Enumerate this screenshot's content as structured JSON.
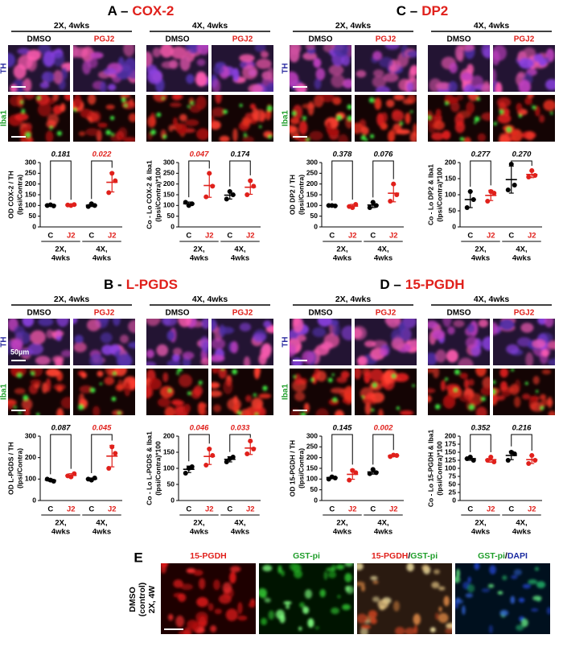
{
  "panels": [
    {
      "letter": "A –",
      "name": "COX-2",
      "headers": [
        "2X, 4wks",
        "4X, 4wks"
      ],
      "conditions": [
        "DMSO",
        "PGJ2"
      ],
      "rows": [
        "TH",
        "Iba1"
      ]
    },
    {
      "letter": "B -",
      "name": "L-PGDS",
      "headers": [
        "2X, 4wks",
        "4X, 4wks"
      ],
      "conditions": [
        "DMSO",
        "PGJ2"
      ],
      "rows": [
        "TH",
        "Iba1"
      ],
      "scalebar": "50µm"
    },
    {
      "letter": "C –",
      "name": "DP2",
      "headers": [
        "2X, 4wks",
        "4X, 4wks"
      ],
      "conditions": [
        "DMSO",
        "PGJ2"
      ],
      "rows": [
        "TH",
        "Iba1"
      ]
    },
    {
      "letter": "D –",
      "name": "15-PGDH",
      "headers": [
        "2X, 4wks",
        "4X, 4wks"
      ],
      "conditions": [
        "DMSO",
        "PGJ2"
      ],
      "rows": [
        "TH",
        "Iba1"
      ]
    }
  ],
  "panel_e": {
    "letter": "E",
    "side_label": [
      "DMSO",
      "(control)",
      "2X, 4W"
    ],
    "channels": [
      {
        "parts": [
          {
            "text": "15-PGDH",
            "color": "#e0201b"
          }
        ]
      },
      {
        "parts": [
          {
            "text": "GST-pi",
            "color": "#1f9e2a"
          }
        ]
      },
      {
        "parts": [
          {
            "text": "15-PGDH",
            "color": "#e0201b"
          },
          {
            "text": "/",
            "color": "#000000"
          },
          {
            "text": "GST-pi",
            "color": "#1f9e2a"
          }
        ]
      },
      {
        "parts": [
          {
            "text": "GST-pi",
            "color": "#1f9e2a"
          },
          {
            "text": "/",
            "color": "#000000"
          },
          {
            "text": "DAPI",
            "color": "#1a2aa0"
          }
        ]
      }
    ]
  },
  "chart_data": [
    {
      "type": "dotplot",
      "ylabel": [
        "OD COX-2 / TH",
        "(Ipsi/Contra)"
      ],
      "ylim": [
        0,
        300
      ],
      "yticks": [
        0,
        50,
        100,
        150,
        200,
        250,
        300
      ],
      "categories": [
        "C",
        "J2",
        "C",
        "J2"
      ],
      "colors": [
        "#000000",
        "#e0201b",
        "#000000",
        "#e0201b"
      ],
      "points": [
        [
          100,
          103,
          98
        ],
        [
          102,
          100,
          104
        ],
        [
          95,
          108,
          100
        ],
        [
          160,
          250,
          215
        ]
      ],
      "means": [
        101,
        102,
        101,
        208
      ],
      "sds": [
        3,
        2,
        6,
        45
      ],
      "groups": [
        [
          "2X,",
          "4wks"
        ],
        [
          "4X,",
          "4wks"
        ]
      ],
      "pvalues": [
        {
          "text": "0.181",
          "color": "#000000"
        },
        {
          "text": "0.022",
          "color": "#e0201b"
        }
      ]
    },
    {
      "type": "dotplot",
      "ylabel": [
        "Co - Lo COX-2 & Iba1",
        "(Ipsi/Contra)*100"
      ],
      "ylim": [
        0,
        300
      ],
      "yticks": [
        0,
        50,
        100,
        150,
        200,
        250,
        300
      ],
      "categories": [
        "C",
        "J2",
        "C",
        "J2"
      ],
      "colors": [
        "#000000",
        "#e0201b",
        "#000000",
        "#e0201b"
      ],
      "points": [
        [
          115,
          100,
          108
        ],
        [
          140,
          250,
          190
        ],
        [
          130,
          165,
          150
        ],
        [
          150,
          215,
          190
        ]
      ],
      "means": [
        108,
        193,
        148,
        185
      ],
      "sds": [
        8,
        55,
        18,
        33
      ],
      "groups": [
        [
          "2X,",
          "4wks"
        ],
        [
          "4X,",
          "4wks"
        ]
      ],
      "pvalues": [
        {
          "text": "0.047",
          "color": "#e0201b"
        },
        {
          "text": "0.174",
          "color": "#000000"
        }
      ]
    },
    {
      "type": "dotplot",
      "ylabel": [
        "OD L-PGDS / TH",
        "(Ipsi/Contra)"
      ],
      "ylim": [
        0,
        300
      ],
      "yticks": [
        0,
        100,
        200,
        300
      ],
      "categories": [
        "C",
        "J2",
        "C",
        "J2"
      ],
      "colors": [
        "#000000",
        "#e0201b",
        "#000000",
        "#e0201b"
      ],
      "points": [
        [
          100,
          95,
          90
        ],
        [
          115,
          110,
          125
        ],
        [
          100,
          95,
          105
        ],
        [
          150,
          250,
          220
        ]
      ],
      "means": [
        95,
        117,
        100,
        207
      ],
      "sds": [
        5,
        8,
        5,
        50
      ],
      "groups": [
        [
          "2X,",
          "4wks"
        ],
        [
          "4X,",
          "4wks"
        ]
      ],
      "pvalues": [
        {
          "text": "0.087",
          "color": "#000000"
        },
        {
          "text": "0.045",
          "color": "#e0201b"
        }
      ]
    },
    {
      "type": "dotplot",
      "ylabel": [
        "Co - Lo L-PGDS & Iba1",
        "(Ipsi/Contra)*100"
      ],
      "ylim": [
        0,
        200
      ],
      "yticks": [
        0,
        50,
        100,
        150,
        200
      ],
      "categories": [
        "C",
        "J2",
        "C",
        "J2"
      ],
      "colors": [
        "#000000",
        "#e0201b",
        "#000000",
        "#e0201b"
      ],
      "points": [
        [
          85,
          100,
          105
        ],
        [
          110,
          160,
          140
        ],
        [
          120,
          130,
          135
        ],
        [
          145,
          185,
          160
        ]
      ],
      "means": [
        97,
        137,
        128,
        163
      ],
      "sds": [
        10,
        25,
        8,
        20
      ],
      "groups": [
        [
          "2X,",
          "4wks"
        ],
        [
          "4X,",
          "4wks"
        ]
      ],
      "pvalues": [
        {
          "text": "0.046",
          "color": "#e0201b"
        },
        {
          "text": "0.033",
          "color": "#e0201b"
        }
      ]
    },
    {
      "type": "dotplot",
      "ylabel": [
        "OD DP2 / TH",
        "(Ipsi/Contra)"
      ],
      "ylim": [
        0,
        300
      ],
      "yticks": [
        0,
        50,
        100,
        150,
        200,
        250,
        300
      ],
      "categories": [
        "C",
        "J2",
        "C",
        "J2"
      ],
      "colors": [
        "#000000",
        "#e0201b",
        "#000000",
        "#e0201b"
      ],
      "points": [
        [
          100,
          100,
          98
        ],
        [
          95,
          90,
          105
        ],
        [
          90,
          115,
          100
        ],
        [
          120,
          200,
          150
        ]
      ],
      "means": [
        99,
        97,
        102,
        157
      ],
      "sds": [
        1,
        8,
        12,
        40
      ],
      "groups": [
        [
          "2X,",
          "4wks"
        ],
        [
          "4X,",
          "4wks"
        ]
      ],
      "pvalues": [
        {
          "text": "0.378",
          "color": "#000000"
        },
        {
          "text": "0.076",
          "color": "#000000"
        }
      ]
    },
    {
      "type": "dotplot",
      "ylabel": [
        "Co - Lo DP2 & Iba1",
        "(Ipsi/Contra)*100"
      ],
      "ylim": [
        0,
        200
      ],
      "yticks": [
        0,
        50,
        100,
        150,
        200
      ],
      "categories": [
        "C",
        "J2",
        "C",
        "J2"
      ],
      "colors": [
        "#000000",
        "#e0201b",
        "#000000",
        "#e0201b"
      ],
      "points": [
        [
          60,
          110,
          85
        ],
        [
          80,
          110,
          105
        ],
        [
          115,
          195,
          130
        ],
        [
          155,
          175,
          160
        ]
      ],
      "means": [
        85,
        98,
        147,
        163
      ],
      "sds": [
        25,
        16,
        42,
        10
      ],
      "groups": [
        [
          "2X,",
          "4wks"
        ],
        [
          "4X,",
          "4wks"
        ]
      ],
      "pvalues": [
        {
          "text": "0.277",
          "color": "#000000"
        },
        {
          "text": "0.270",
          "color": "#000000"
        }
      ]
    },
    {
      "type": "dotplot",
      "ylabel": [
        "OD 15-PGDH / TH",
        "(Ipsi/Contra)"
      ],
      "ylim": [
        0,
        300
      ],
      "yticks": [
        0,
        50,
        100,
        150,
        200,
        250,
        300
      ],
      "categories": [
        "C",
        "J2",
        "C",
        "J2"
      ],
      "colors": [
        "#000000",
        "#e0201b",
        "#000000",
        "#e0201b"
      ],
      "points": [
        [
          100,
          110,
          105
        ],
        [
          95,
          140,
          130
        ],
        [
          125,
          145,
          130
        ],
        [
          205,
          212,
          210
        ]
      ],
      "means": [
        107,
        122,
        133,
        209
      ],
      "sds": [
        5,
        23,
        10,
        4
      ],
      "groups": [
        [
          "2X,",
          "4wks"
        ],
        [
          "4X,",
          "4wks"
        ]
      ],
      "pvalues": [
        {
          "text": "0.145",
          "color": "#000000"
        },
        {
          "text": "0.002",
          "color": "#e0201b"
        }
      ]
    },
    {
      "type": "dotplot",
      "ylabel": [
        "Co - Lo 15-PGDH & Iba1",
        "(Ipsi/Contra)*100"
      ],
      "ylim": [
        0,
        200
      ],
      "yticks": [
        0,
        25,
        50,
        75,
        100,
        125,
        150,
        175,
        200
      ],
      "categories": [
        "C",
        "J2",
        "C",
        "J2"
      ],
      "colors": [
        "#000000",
        "#e0201b",
        "#000000",
        "#e0201b"
      ],
      "points": [
        [
          130,
          135,
          125
        ],
        [
          125,
          135,
          120
        ],
        [
          125,
          150,
          145
        ],
        [
          115,
          140,
          125
        ]
      ],
      "means": [
        130,
        127,
        140,
        127
      ],
      "sds": [
        5,
        8,
        13,
        12
      ],
      "groups": [
        [
          "2X,",
          "4wks"
        ],
        [
          "4X,",
          "4wks"
        ]
      ],
      "pvalues": [
        {
          "text": "0.352",
          "color": "#000000"
        },
        {
          "text": "0.216",
          "color": "#000000"
        }
      ]
    }
  ]
}
